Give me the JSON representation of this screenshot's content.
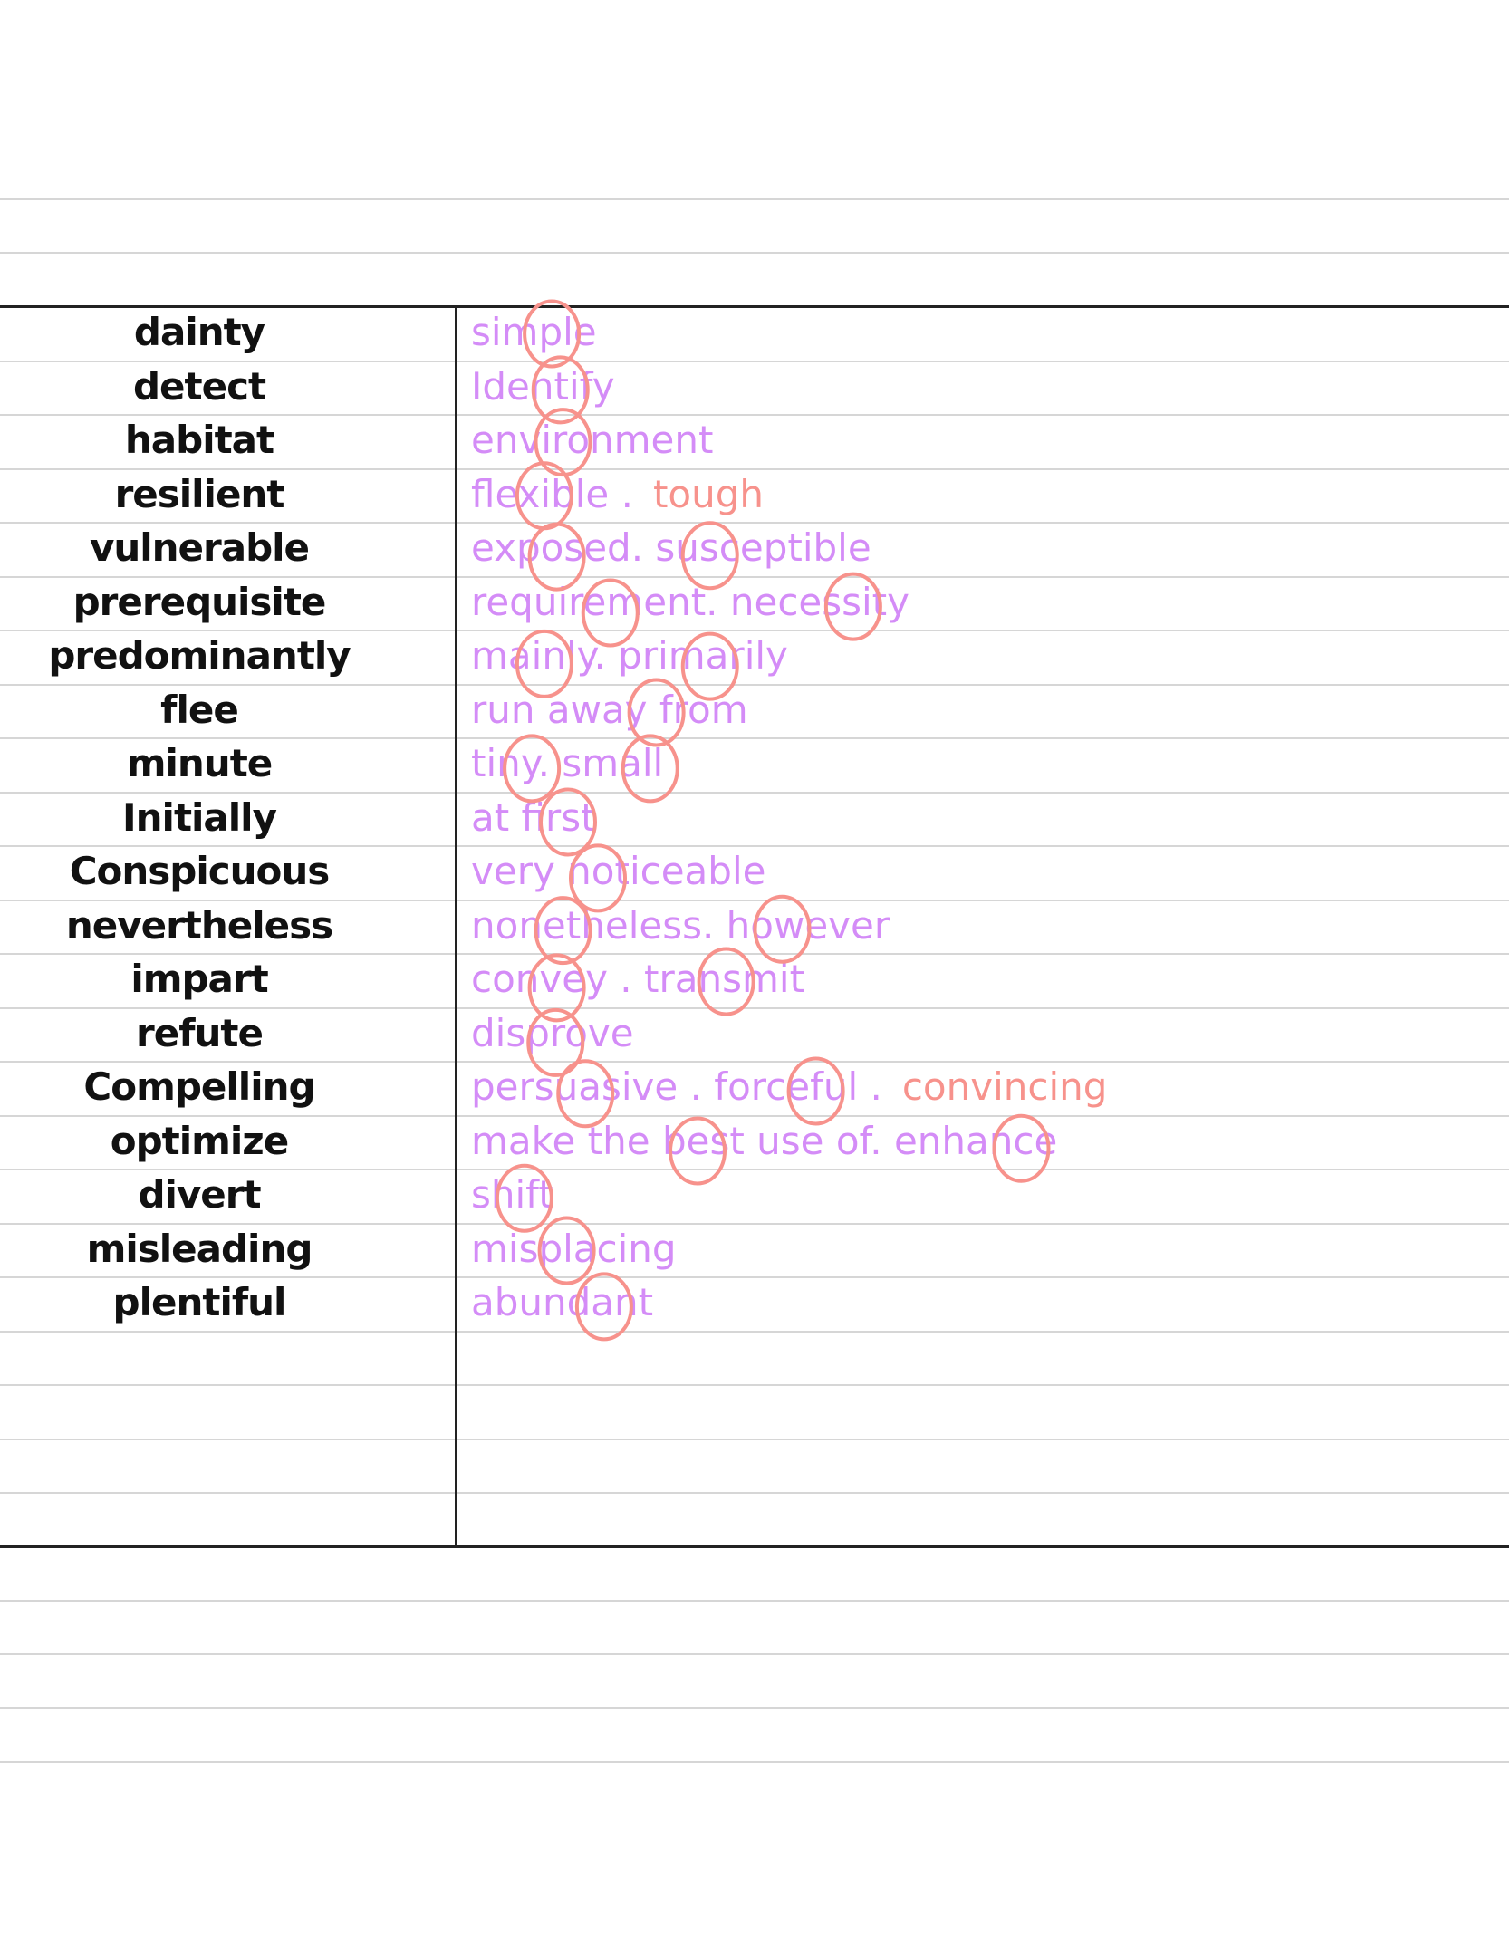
{
  "colors": {
    "term": "#111111",
    "definition": "#d48cf7",
    "annotation": "#f7928c",
    "circle": "#f7928c"
  },
  "vocabulary": [
    {
      "term": "dainty",
      "definitions": [
        {
          "text": "simple",
          "color": "purple"
        }
      ]
    },
    {
      "term": "detect",
      "definitions": [
        {
          "text": "Identify",
          "color": "purple"
        }
      ]
    },
    {
      "term": "habitat",
      "definitions": [
        {
          "text": "environment",
          "color": "purple"
        }
      ]
    },
    {
      "term": "resilient",
      "definitions": [
        {
          "text": "flexible .",
          "color": "purple"
        },
        {
          "text": "tough",
          "color": "pink"
        }
      ]
    },
    {
      "term": "vulnerable",
      "definitions": [
        {
          "text": "exposed. susceptible",
          "color": "purple"
        }
      ]
    },
    {
      "term": "prerequisite",
      "definitions": [
        {
          "text": "requirement. necessity",
          "color": "purple"
        }
      ]
    },
    {
      "term": "predominantly",
      "definitions": [
        {
          "text": "mainly. primarily",
          "color": "purple"
        }
      ]
    },
    {
      "term": "flee",
      "definitions": [
        {
          "text": "run away from",
          "color": "purple"
        }
      ]
    },
    {
      "term": "minute",
      "definitions": [
        {
          "text": "tiny. small",
          "color": "purple"
        }
      ]
    },
    {
      "term": "Initially",
      "definitions": [
        {
          "text": "at first",
          "color": "purple"
        }
      ]
    },
    {
      "term": "Conspicuous",
      "definitions": [
        {
          "text": "very noticeable",
          "color": "purple"
        }
      ]
    },
    {
      "term": "nevertheless",
      "definitions": [
        {
          "text": "nonetheless. however",
          "color": "purple"
        }
      ]
    },
    {
      "term": "impart",
      "definitions": [
        {
          "text": "convey . transmit",
          "color": "purple"
        }
      ]
    },
    {
      "term": "refute",
      "definitions": [
        {
          "text": "disprove",
          "color": "purple"
        }
      ]
    },
    {
      "term": "Compelling",
      "definitions": [
        {
          "text": "persuasive . forceful .",
          "color": "purple"
        },
        {
          "text": "convincing",
          "color": "pink"
        }
      ]
    },
    {
      "term": "optimize",
      "definitions": [
        {
          "text": "make the best use of. enhance",
          "color": "purple"
        }
      ]
    },
    {
      "term": "divert",
      "definitions": [
        {
          "text": "shift",
          "color": "purple"
        }
      ]
    },
    {
      "term": "misleading",
      "definitions": [
        {
          "text": "misplacing",
          "color": "purple"
        }
      ]
    },
    {
      "term": "plentiful",
      "definitions": [
        {
          "text": "abundant",
          "color": "purple"
        }
      ]
    }
  ]
}
